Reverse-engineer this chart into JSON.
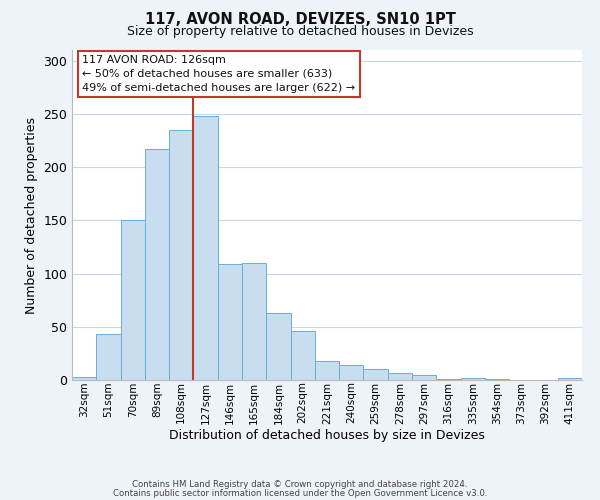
{
  "title": "117, AVON ROAD, DEVIZES, SN10 1PT",
  "subtitle": "Size of property relative to detached houses in Devizes",
  "xlabel": "Distribution of detached houses by size in Devizes",
  "ylabel": "Number of detached properties",
  "bin_labels": [
    "32sqm",
    "51sqm",
    "70sqm",
    "89sqm",
    "108sqm",
    "127sqm",
    "146sqm",
    "165sqm",
    "184sqm",
    "202sqm",
    "221sqm",
    "240sqm",
    "259sqm",
    "278sqm",
    "297sqm",
    "316sqm",
    "335sqm",
    "354sqm",
    "373sqm",
    "392sqm",
    "411sqm"
  ],
  "bar_heights": [
    3,
    43,
    150,
    217,
    235,
    248,
    109,
    110,
    63,
    46,
    18,
    14,
    10,
    7,
    5,
    1,
    2,
    1,
    0,
    0,
    2
  ],
  "bar_color": "#c9ddf0",
  "bar_edge_color": "#6aaed6",
  "vline_x_index": 5,
  "vline_color": "#c0392b",
  "ylim": [
    0,
    310
  ],
  "yticks": [
    0,
    50,
    100,
    150,
    200,
    250,
    300
  ],
  "annotation_title": "117 AVON ROAD: 126sqm",
  "annotation_line1": "← 50% of detached houses are smaller (633)",
  "annotation_line2": "49% of semi-detached houses are larger (622) →",
  "annotation_box_color": "#ffffff",
  "annotation_box_edge_color": "#c0392b",
  "footer_line1": "Contains HM Land Registry data © Crown copyright and database right 2024.",
  "footer_line2": "Contains public sector information licensed under the Open Government Licence v3.0.",
  "background_color": "#eef2f9",
  "plot_background_color": "#ffffff",
  "grid_color": "#c8d8eb"
}
